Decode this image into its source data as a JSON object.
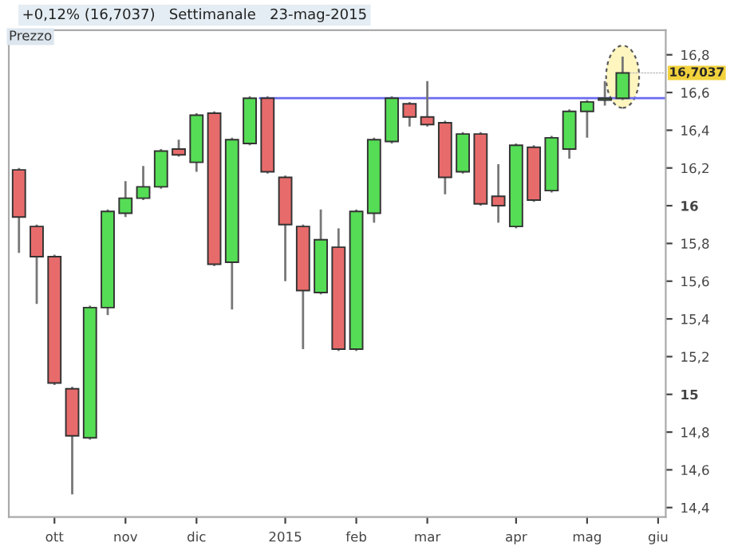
{
  "chart_data": {
    "type": "candlestick",
    "title": "+0,12% (16,7037)   Settimanale   23-mag-2015",
    "annotations": [
      "Prezzo",
      {
        "text": "16,7037",
        "x": "2015-05-18",
        "y": 16.7037
      }
    ],
    "x": [
      "2014-09-22",
      "2014-09-29",
      "2014-10-06",
      "2014-10-13",
      "2014-10-20",
      "2014-10-27",
      "2014-11-03",
      "2014-11-10",
      "2014-11-17",
      "2014-11-24",
      "2014-12-01",
      "2014-12-08",
      "2014-12-15",
      "2014-12-22",
      "2014-12-29",
      "2015-01-05",
      "2015-01-12",
      "2015-01-19",
      "2015-01-26",
      "2015-02-02",
      "2015-02-09",
      "2015-02-16",
      "2015-02-23",
      "2015-03-02",
      "2015-03-09",
      "2015-03-16",
      "2015-03-23",
      "2015-03-30",
      "2015-04-06",
      "2015-04-13",
      "2015-04-20",
      "2015-04-27",
      "2015-05-04",
      "2015-05-11",
      "2015-05-18"
    ],
    "series": [
      {
        "type": "candlestick",
        "ohlc": [
          [
            16.19,
            16.2,
            15.75,
            15.94
          ],
          [
            15.89,
            15.9,
            15.48,
            15.73
          ],
          [
            15.73,
            15.74,
            15.05,
            15.06
          ],
          [
            15.03,
            15.04,
            14.47,
            14.78
          ],
          [
            14.77,
            15.47,
            14.76,
            15.46
          ],
          [
            15.46,
            15.98,
            15.42,
            15.97
          ],
          [
            15.96,
            16.13,
            15.94,
            16.04
          ],
          [
            16.04,
            16.21,
            16.03,
            16.1
          ],
          [
            16.1,
            16.3,
            16.09,
            16.29
          ],
          [
            16.3,
            16.35,
            16.26,
            16.27
          ],
          [
            16.23,
            16.49,
            16.18,
            16.48
          ],
          [
            16.49,
            16.5,
            15.68,
            15.69
          ],
          [
            15.7,
            16.36,
            15.45,
            16.35
          ],
          [
            16.33,
            16.58,
            16.32,
            16.57
          ],
          [
            16.57,
            16.58,
            16.17,
            16.18
          ],
          [
            16.15,
            16.16,
            15.6,
            15.9
          ],
          [
            15.89,
            15.9,
            15.24,
            15.55
          ],
          [
            15.54,
            15.98,
            15.53,
            15.82
          ],
          [
            15.78,
            15.88,
            15.23,
            15.24
          ],
          [
            15.24,
            15.98,
            15.23,
            15.97
          ],
          [
            15.96,
            16.36,
            15.91,
            16.35
          ],
          [
            16.34,
            16.58,
            16.33,
            16.57
          ],
          [
            16.54,
            16.55,
            16.42,
            16.47
          ],
          [
            16.47,
            16.66,
            16.42,
            16.43
          ],
          [
            16.44,
            16.45,
            16.06,
            16.15
          ],
          [
            16.18,
            16.39,
            16.17,
            16.38
          ],
          [
            16.38,
            16.39,
            16.0,
            16.01
          ],
          [
            16.05,
            16.22,
            15.91,
            16.0
          ],
          [
            15.89,
            16.33,
            15.88,
            16.32
          ],
          [
            16.31,
            16.32,
            16.02,
            16.03
          ],
          [
            16.08,
            16.37,
            16.07,
            16.36
          ],
          [
            16.3,
            16.51,
            16.25,
            16.5
          ],
          [
            16.5,
            16.56,
            16.36,
            16.55
          ],
          [
            16.56,
            16.66,
            16.53,
            16.57
          ],
          [
            16.57,
            16.79,
            16.56,
            16.7037
          ]
        ],
        "colors": [
          "#e86b6b",
          "#e86b6b",
          "#e86b6b",
          "#e86b6b",
          "#55dd55",
          "#55dd55",
          "#55dd55",
          "#55dd55",
          "#55dd55",
          "#e86b6b",
          "#55dd55",
          "#e86b6b",
          "#55dd55",
          "#55dd55",
          "#e86b6b",
          "#e86b6b",
          "#e86b6b",
          "#55dd55",
          "#e86b6b",
          "#55dd55",
          "#55dd55",
          "#55dd55",
          "#e86b6b",
          "#e86b6b",
          "#e86b6b",
          "#55dd55",
          "#e86b6b",
          "#e86b6b",
          "#55dd55",
          "#e86b6b",
          "#55dd55",
          "#55dd55",
          "#55dd55",
          "#55dd55",
          "#55dd55"
        ]
      },
      {
        "type": "line",
        "x": [
          "2014-12-26",
          "2015-06-04"
        ],
        "values": [
          16.57,
          16.57
        ],
        "color": "#6a6af0"
      }
    ],
    "xlim": [
      "2014-09-18",
      "2015-06-04"
    ],
    "xticks": [
      {
        "value": "2014-10-06",
        "label": "ott"
      },
      {
        "value": "2014-11-03",
        "label": "nov"
      },
      {
        "value": "2014-12-01",
        "label": "dic"
      },
      {
        "value": "2015-01-05",
        "label": "2015"
      },
      {
        "value": "2015-02-02",
        "label": "feb"
      },
      {
        "value": "2015-03-02",
        "label": "mar"
      },
      {
        "value": "2015-04-06",
        "label": "apr"
      },
      {
        "value": "2015-05-04",
        "label": "mag"
      },
      {
        "value": "2015-06-01",
        "label": "giu"
      }
    ],
    "ylim": [
      14.35,
      16.93
    ],
    "yticks": [
      {
        "value": 14.4,
        "label": "14,4"
      },
      {
        "value": 14.6,
        "label": "14,6"
      },
      {
        "value": 14.8,
        "label": "14,8"
      },
      {
        "value": 15,
        "label": "15"
      },
      {
        "value": 15.2,
        "label": "15,2"
      },
      {
        "value": 15.4,
        "label": "15,4"
      },
      {
        "value": 15.6,
        "label": "15,6"
      },
      {
        "value": 15.8,
        "label": "15,8"
      },
      {
        "value": 16,
        "label": "16"
      },
      {
        "value": 16.2,
        "label": "16,2"
      },
      {
        "value": 16.4,
        "label": "16,4"
      },
      {
        "value": 16.6,
        "label": "16,6"
      },
      {
        "value": 16.8,
        "label": "16,8"
      }
    ],
    "grid": false,
    "legend": false
  }
}
